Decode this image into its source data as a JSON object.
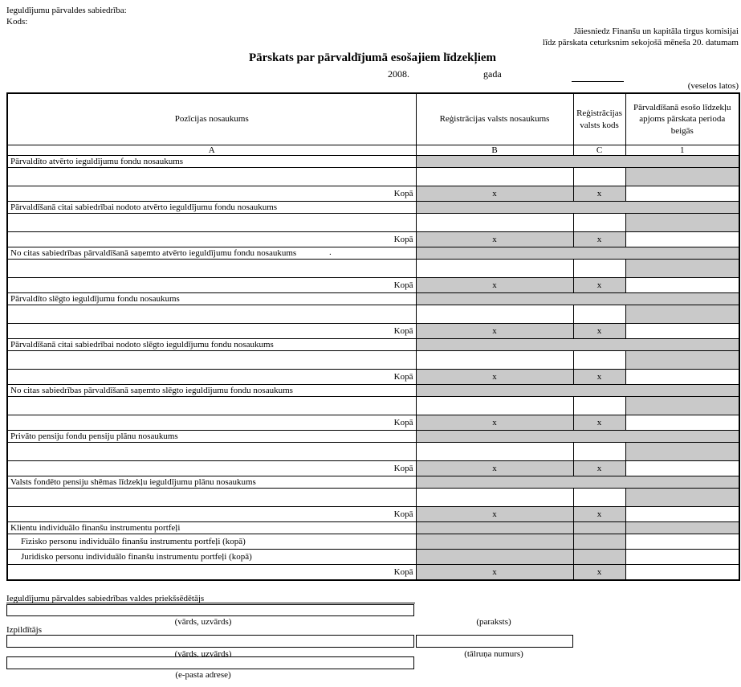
{
  "colors": {
    "blocked_cell_fill": "#c9c9c9"
  },
  "header": {
    "company_label": "Ieguldījumu pārvaldes sabiedrība:",
    "code_label": "Kods:",
    "submit_note_line1": "Jāiesniedz Finanšu un kapitāla tirgus komisijai",
    "submit_note_line2": "līdz pārskata ceturksnim sekojošā mēneša 20. datumam",
    "title": "Pārskats par pārvaldījumā esošajiem līdzekļiem",
    "year": "2008.",
    "year_suffix": "gada",
    "units_note": "(veselos latos)"
  },
  "table": {
    "total_label": "Kopā",
    "x_mark": "x",
    "columns": [
      {
        "label": "Pozīcijas nosaukums",
        "letter": "A"
      },
      {
        "label": "Reģistrācijas valsts nosaukums",
        "letter": "B"
      },
      {
        "label": "Reģistrācijas valsts kods",
        "letter": "C"
      },
      {
        "label": "Pārvaldīšanā esošo līdzekļu apjoms pārskata perioda beigās",
        "letter": "1"
      }
    ],
    "rows": [
      {
        "type": "section",
        "label": "Pārvaldīto atvērto ieguldījumu fondu nosaukums"
      },
      {
        "type": "entry"
      },
      {
        "type": "total"
      },
      {
        "type": "section",
        "label": "Pārvaldīšanā citai sabiedrībai nodoto atvērto ieguldījumu fondu nosaukums"
      },
      {
        "type": "entry"
      },
      {
        "type": "total"
      },
      {
        "type": "section",
        "label": "No citas sabiedrības pārvaldīšanā saņemto atvērto ieguldījumu fondu nosaukums",
        "dot": "."
      },
      {
        "type": "entry"
      },
      {
        "type": "total"
      },
      {
        "type": "section",
        "label": "Pārvaldīto slēgto ieguldījumu fondu nosaukums",
        "thick_top": true
      },
      {
        "type": "entry"
      },
      {
        "type": "total"
      },
      {
        "type": "section",
        "label": "Pārvaldīšanā citai sabiedrībai nodoto slēgto ieguldījumu fondu nosaukums"
      },
      {
        "type": "entry"
      },
      {
        "type": "total"
      },
      {
        "type": "section",
        "label": "No citas sabiedrības pārvaldīšanā saņemto slēgto ieguldījumu fondu nosaukums"
      },
      {
        "type": "entry"
      },
      {
        "type": "total"
      },
      {
        "type": "section",
        "label": "Privāto pensiju fondu pensiju plānu nosaukums",
        "thick_top": true
      },
      {
        "type": "entry"
      },
      {
        "type": "total"
      },
      {
        "type": "section",
        "label": "Valsts fondēto pensiju shēmas līdzekļu ieguldījumu plānu nosaukums",
        "thick_top": true
      },
      {
        "type": "entry"
      },
      {
        "type": "total"
      },
      {
        "type": "section_cells",
        "label": "Klientu individuālo finanšu instrumentu portfeļi",
        "thick_top": true
      },
      {
        "type": "sub",
        "label": "Fizisko personu individuālo finanšu instrumentu portfeļi (kopā)"
      },
      {
        "type": "sub",
        "label": "Juridisko personu individuālo finanšu instrumentu portfeļi (kopā)"
      },
      {
        "type": "total"
      }
    ]
  },
  "footer": {
    "chairman_label": "Ieguldījumu pārvaldes sabiedrības valdes priekšsēdētājs",
    "name_caption": "(vārds, uzvārds)",
    "signature_caption": "(paraksts)",
    "executor_label": "Izpildītājs",
    "phone_caption": "(tālruņa numurs)",
    "email_caption": "(e-pasta adrese)"
  }
}
